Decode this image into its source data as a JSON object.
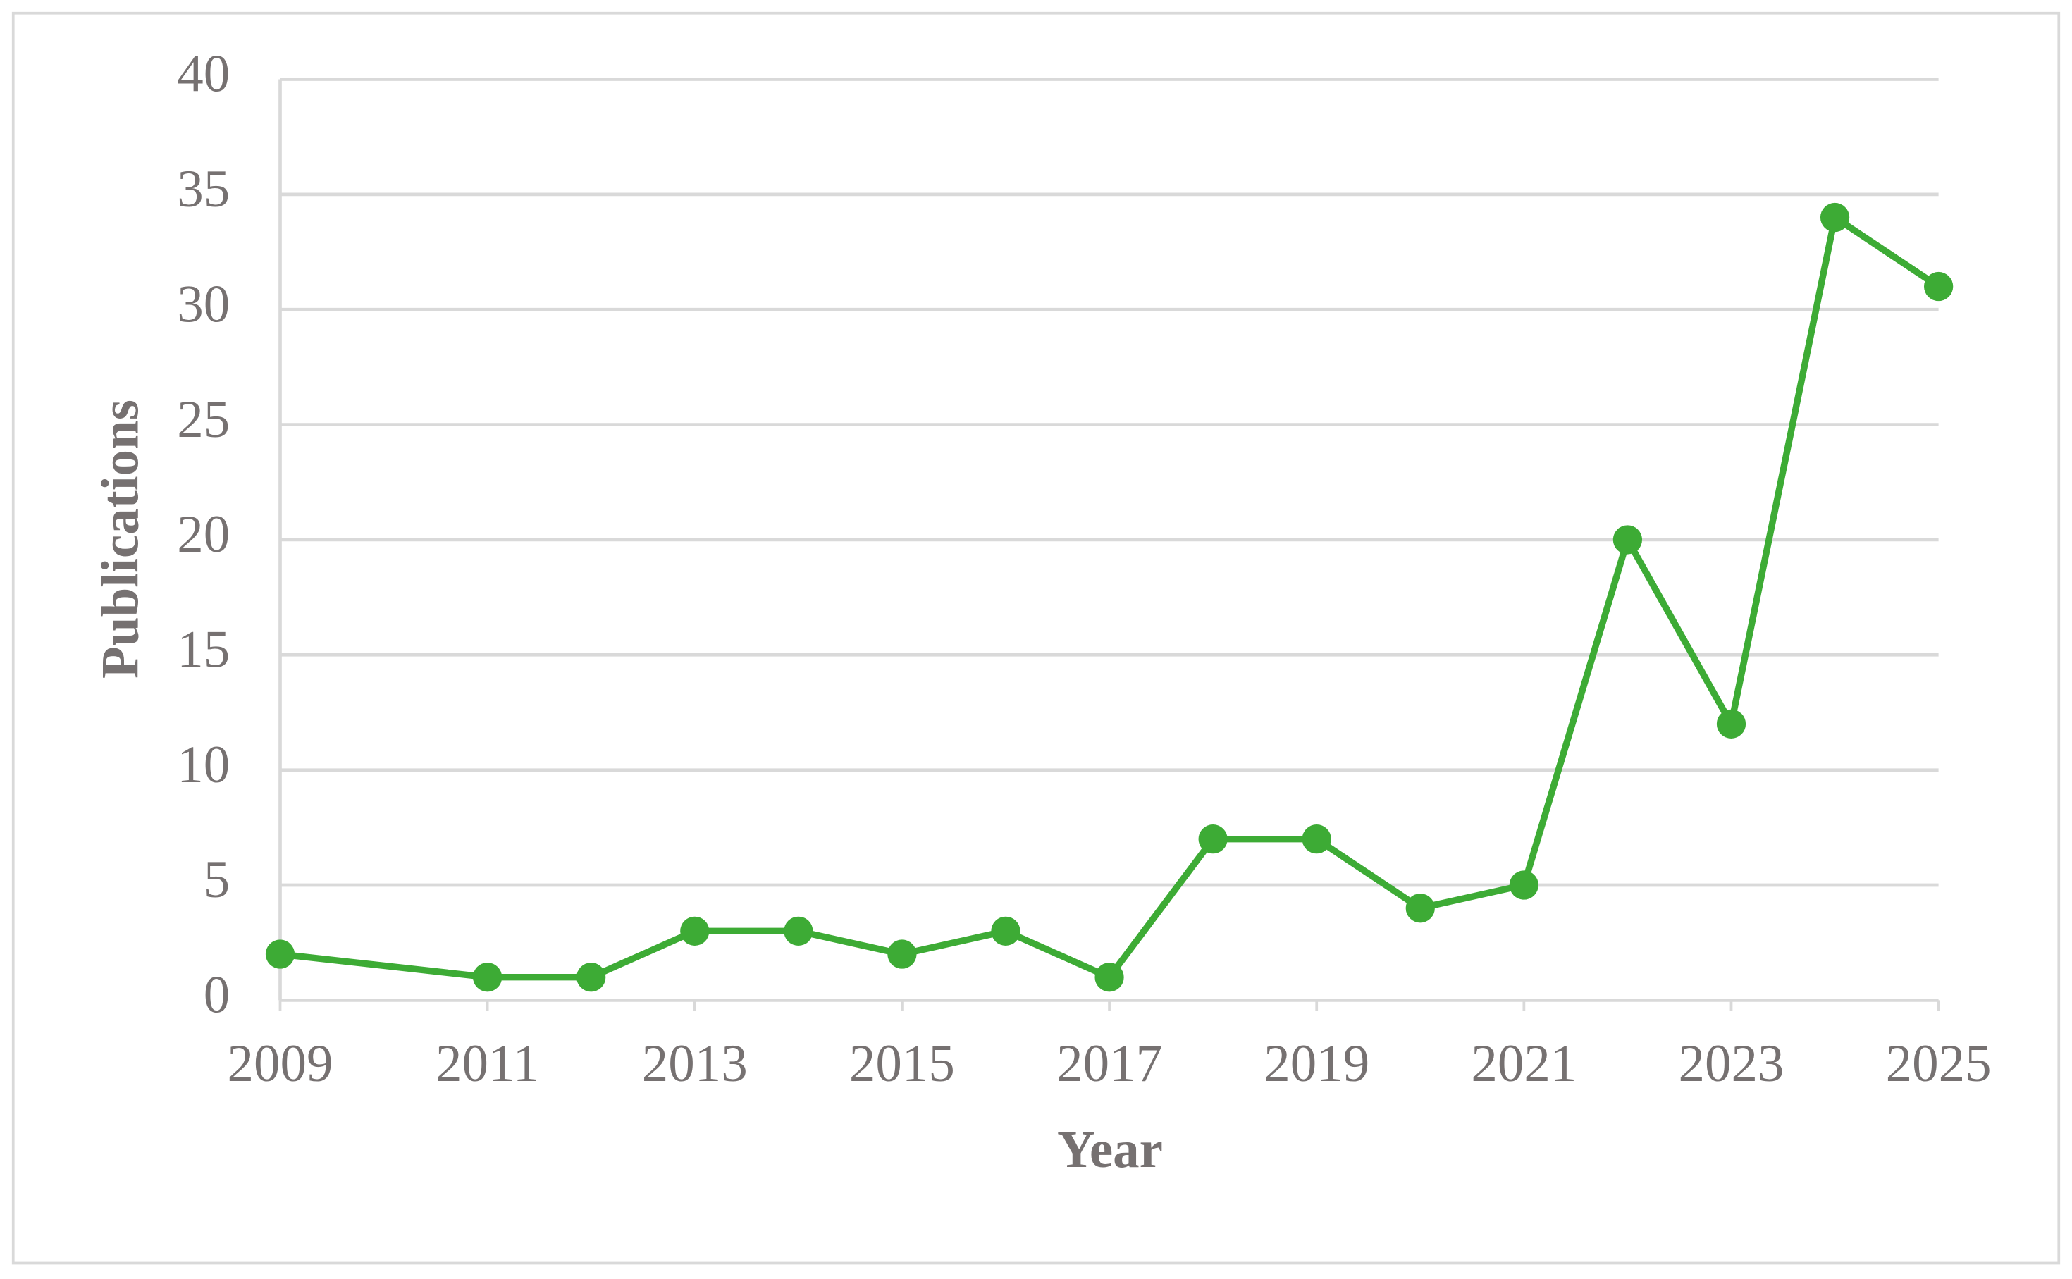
{
  "chart_data": {
    "type": "line",
    "x_label": "Year",
    "y_label": "Publications",
    "x": [
      2009,
      2011,
      2012,
      2013,
      2014,
      2015,
      2016,
      2017,
      2018,
      2019,
      2020,
      2021,
      2022,
      2023,
      2024,
      2025
    ],
    "series": [
      {
        "color": "#3dab35",
        "values": [
          2,
          1,
          1,
          3,
          3,
          2,
          3,
          1,
          7,
          7,
          4,
          5,
          20,
          12,
          34,
          31
        ]
      }
    ],
    "xlim": [
      2009,
      2025
    ],
    "xticks": [
      2009,
      2011,
      2013,
      2015,
      2017,
      2019,
      2021,
      2023,
      2025
    ],
    "ylim": [
      0,
      40
    ],
    "yticks": [
      0,
      5,
      10,
      15,
      20,
      25,
      30,
      35,
      40
    ],
    "grid": true
  }
}
